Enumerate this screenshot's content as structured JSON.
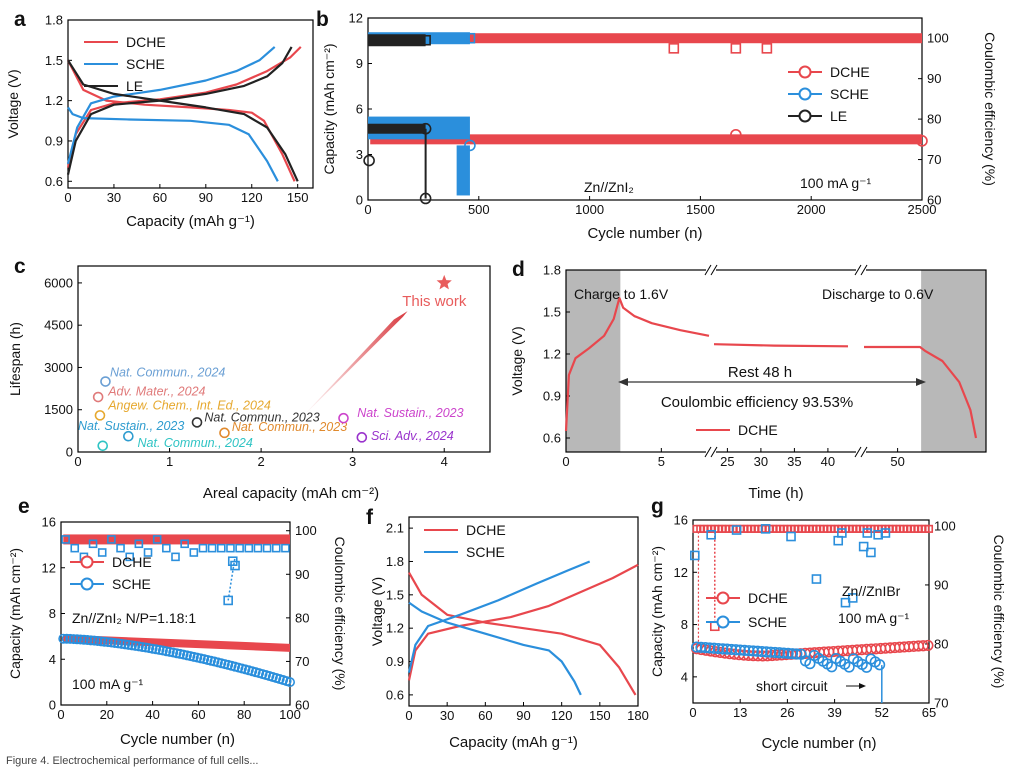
{
  "colors": {
    "dche": "#e8474d",
    "sche": "#2b8fdc",
    "le": "#222222",
    "star": "#e85c5c",
    "shade": "#b8b8b8"
  },
  "caption": "Figure 4. Electrochemical performance of full cells...",
  "panels": {
    "a": {
      "letter": "a",
      "xlabel": "Capacity (mAh g⁻¹)",
      "ylabel": "Voltage (V)",
      "legend": [
        "DCHE",
        "SCHE",
        "LE"
      ]
    },
    "b": {
      "letter": "b",
      "xlabel": "Cycle number (n)",
      "ylabel": "Capacity (mAh cm⁻²)",
      "ylabel2": "Coulombic efficiency (%)",
      "legend": [
        "DCHE",
        "SCHE",
        "LE"
      ],
      "annotation_cell": "Zn//ZnI₂",
      "annotation_rate": "100 mA g⁻¹"
    },
    "c": {
      "letter": "c",
      "xlabel": "Areal capacity (mAh cm⁻²)",
      "ylabel": "Lifespan (h)",
      "this_work": "This work"
    },
    "d": {
      "letter": "d",
      "xlabel": "Time (h)",
      "ylabel": "Voltage (V)",
      "charge_label": "Charge to 1.6V",
      "discharge_label": "Discharge to 0.6V",
      "rest_label": "Rest 48 h",
      "ce_label": "Coulombic efficiency 93.53%",
      "legend": [
        "DCHE"
      ]
    },
    "e": {
      "letter": "e",
      "xlabel": "Cycle number (n)",
      "ylabel": "Capacity (mAh cm⁻²)",
      "ylabel2": "Coulombic efficiency (%)",
      "legend": [
        "DCHE",
        "SCHE"
      ],
      "annotation_cell": "Zn//ZnI₂  N/P=1.18:1",
      "annotation_rate": "100 mA g⁻¹"
    },
    "f": {
      "letter": "f",
      "xlabel": "Capacity (mAh g⁻¹)",
      "ylabel": "Voltage (V)",
      "legend": [
        "DCHE",
        "SCHE"
      ]
    },
    "g": {
      "letter": "g",
      "xlabel": "Cycle number (n)",
      "ylabel": "Capacity (mAh cm⁻²)",
      "ylabel2": "Coulombic efficiency (%)",
      "legend": [
        "DCHE",
        "SCHE"
      ],
      "annotation_cell": "Zn//ZnIBr",
      "annotation_rate": "100 mA g⁻¹",
      "short_circuit": "short circuit"
    }
  },
  "chart_data": [
    {
      "id": "a",
      "type": "line",
      "title": "",
      "xlabel": "Capacity (mAh g⁻¹)",
      "ylabel": "Voltage (V)",
      "xlim": [
        0,
        160
      ],
      "ylim": [
        0.55,
        1.8
      ],
      "xticks": [
        0,
        30,
        60,
        90,
        120,
        150
      ],
      "yticks": [
        0.6,
        0.9,
        1.2,
        1.5,
        1.8
      ],
      "series": [
        {
          "name": "DCHE",
          "color": "dche",
          "segments": [
            [
              [
                0,
                0.7
              ],
              [
                5,
                0.95
              ],
              [
                15,
                1.13
              ],
              [
                30,
                1.18
              ],
              [
                60,
                1.21
              ],
              [
                90,
                1.26
              ],
              [
                110,
                1.32
              ],
              [
                130,
                1.42
              ],
              [
                145,
                1.52
              ],
              [
                152,
                1.6
              ]
            ],
            [
              [
                0,
                1.5
              ],
              [
                10,
                1.28
              ],
              [
                25,
                1.2
              ],
              [
                50,
                1.17
              ],
              [
                80,
                1.15
              ],
              [
                105,
                1.13
              ],
              [
                120,
                1.11
              ],
              [
                128,
                1.05
              ],
              [
                140,
                0.8
              ],
              [
                148,
                0.6
              ]
            ]
          ]
        },
        {
          "name": "SCHE",
          "color": "sche",
          "segments": [
            [
              [
                0,
                0.73
              ],
              [
                6,
                1.0
              ],
              [
                15,
                1.18
              ],
              [
                30,
                1.23
              ],
              [
                60,
                1.28
              ],
              [
                90,
                1.35
              ],
              [
                110,
                1.42
              ],
              [
                125,
                1.5
              ],
              [
                135,
                1.6
              ]
            ],
            [
              [
                0,
                1.15
              ],
              [
                3,
                1.1
              ],
              [
                10,
                1.07
              ],
              [
                40,
                1.06
              ],
              [
                80,
                1.05
              ],
              [
                105,
                1.02
              ],
              [
                118,
                0.95
              ],
              [
                130,
                0.75
              ],
              [
                137,
                0.6
              ]
            ]
          ]
        },
        {
          "name": "LE",
          "color": "le",
          "segments": [
            [
              [
                0,
                0.65
              ],
              [
                5,
                0.9
              ],
              [
                15,
                1.1
              ],
              [
                30,
                1.17
              ],
              [
                60,
                1.2
              ],
              [
                90,
                1.25
              ],
              [
                115,
                1.31
              ],
              [
                130,
                1.38
              ],
              [
                140,
                1.48
              ],
              [
                146,
                1.6
              ]
            ],
            [
              [
                0,
                1.5
              ],
              [
                10,
                1.32
              ],
              [
                30,
                1.25
              ],
              [
                60,
                1.2
              ],
              [
                90,
                1.15
              ],
              [
                115,
                1.1
              ],
              [
                130,
                1.0
              ],
              [
                142,
                0.8
              ],
              [
                150,
                0.6
              ]
            ]
          ]
        }
      ]
    },
    {
      "id": "b",
      "type": "scatter",
      "title": "",
      "xlabel": "Cycle number (n)",
      "ylabel": "Capacity (mAh cm⁻²)",
      "ylabel2": "Coulombic efficiency (%)",
      "xlim": [
        0,
        2500
      ],
      "ylim": [
        0,
        12
      ],
      "y2lim": [
        60,
        105
      ],
      "xticks": [
        0,
        500,
        1000,
        1500,
        2000,
        2500
      ],
      "yticks": [
        0,
        3,
        6,
        9,
        12
      ],
      "y2ticks": [
        60,
        70,
        80,
        90,
        100
      ],
      "series": [
        {
          "name": "DCHE",
          "color": "dche",
          "capacity_range": [
            10,
            2500,
            4.0
          ],
          "ce_range": [
            10,
            2500,
            100
          ],
          "ce_dips": [
            [
              1380,
              97.5
            ],
            [
              1660,
              97.5
            ],
            [
              1800,
              97.5
            ]
          ],
          "cap_points": [
            [
              1660,
              4.3
            ],
            [
              2500,
              3.9
            ]
          ]
        },
        {
          "name": "SCHE",
          "color": "sche",
          "capacity_range": [
            0,
            460,
            4.8
          ],
          "ce_range": [
            0,
            460,
            100
          ],
          "fail_at": 460,
          "fail_min": 0.3
        },
        {
          "name": "LE",
          "color": "le",
          "capacity_range": [
            0,
            260,
            4.7
          ],
          "ce_range": [
            0,
            260,
            99.5
          ],
          "fail_at": 260,
          "fail_min": 0.1,
          "early_points": [
            [
              5,
              2.6
            ]
          ]
        }
      ]
    },
    {
      "id": "c",
      "type": "scatter",
      "title": "",
      "xlabel": "Areal capacity (mAh cm⁻²)",
      "ylabel": "Lifespan (h)",
      "xlim": [
        0,
        4.5
      ],
      "ylim": [
        0,
        6600
      ],
      "xticks": [
        0,
        1,
        2,
        3,
        4
      ],
      "yticks": [
        0,
        1500,
        3000,
        4500,
        6000
      ],
      "points": [
        {
          "x": 0.3,
          "y": 2500,
          "label": "Nat. Commun., 2024",
          "color": "#6a9fd4",
          "lx": 0.35,
          "ly": 2680
        },
        {
          "x": 0.22,
          "y": 1950,
          "label": "Adv. Mater., 2024",
          "color": "#e07a7a",
          "lx": 0.33,
          "ly": 2000
        },
        {
          "x": 0.24,
          "y": 1300,
          "label": "Angew. Chem., Int. Ed., 2024",
          "color": "#e6a82e",
          "lx": 0.33,
          "ly": 1500
        },
        {
          "x": 0.55,
          "y": 560,
          "label": "Nat. Sustain., 2023",
          "color": "#2e9ccf",
          "lx": 0.0,
          "ly": 780
        },
        {
          "x": 0.27,
          "y": 220,
          "label": "Nat. Commun., 2024",
          "color": "#2fc4c4",
          "lx": 0.65,
          "ly": 180
        },
        {
          "x": 1.3,
          "y": 1050,
          "label": "Nat. Commun., 2023",
          "color": "#333333",
          "lx": 1.38,
          "ly": 1080
        },
        {
          "x": 1.6,
          "y": 680,
          "label": "Nat. Commun., 2023",
          "color": "#e08a2e",
          "lx": 1.68,
          "ly": 740
        },
        {
          "x": 2.9,
          "y": 1200,
          "label": "Nat. Sustain., 2023",
          "color": "#cc44cc",
          "lx": 3.05,
          "ly": 1250
        },
        {
          "x": 3.1,
          "y": 520,
          "label": "Sci. Adv., 2024",
          "color": "#9932cc",
          "lx": 3.2,
          "ly": 420
        }
      ],
      "this_work": {
        "x": 4.0,
        "y": 6000
      }
    },
    {
      "id": "d",
      "type": "line",
      "title": "",
      "xlabel": "Time (h)",
      "ylabel": "Voltage (V)",
      "ylim": [
        0.5,
        1.8
      ],
      "yticks": [
        0.6,
        0.9,
        1.2,
        1.5,
        1.8
      ],
      "xtick_labels": [
        "0",
        "5",
        "25",
        "30",
        "35",
        "40",
        "50"
      ],
      "segments": [
        [
          [
            0,
            0.65
          ],
          [
            0.15,
            1.05
          ],
          [
            0.5,
            1.17
          ],
          [
            1.2,
            1.24
          ],
          [
            2.0,
            1.33
          ],
          [
            2.5,
            1.45
          ],
          [
            2.8,
            1.6
          ],
          [
            3.0,
            1.53
          ],
          [
            3.6,
            1.47
          ],
          [
            4.5,
            1.42
          ],
          [
            6.0,
            1.37
          ],
          [
            7.5,
            1.33
          ]
        ],
        [
          [
            23,
            1.27
          ],
          [
            32,
            1.26
          ],
          [
            43,
            1.255
          ]
        ],
        [
          [
            47,
            1.25
          ],
          [
            52,
            1.25
          ],
          [
            52.5,
            1.22
          ],
          [
            54,
            1.15
          ],
          [
            55.5,
            1.0
          ],
          [
            56.5,
            0.8
          ],
          [
            57,
            0.6
          ]
        ]
      ]
    },
    {
      "id": "e",
      "type": "scatter",
      "title": "",
      "xlabel": "Cycle number (n)",
      "ylabel": "Capacity (mAh cm⁻²)",
      "ylabel2": "Coulombic efficiency (%)",
      "xlim": [
        0,
        100
      ],
      "ylim": [
        0,
        16
      ],
      "y2lim": [
        60,
        102
      ],
      "xticks": [
        0,
        20,
        40,
        60,
        80,
        100
      ],
      "yticks": [
        0,
        4,
        8,
        12,
        16
      ],
      "y2ticks": [
        60,
        70,
        80,
        90,
        100
      ],
      "series": [
        {
          "name": "DCHE",
          "color": "dche",
          "cap_start": 5.8,
          "cap_end": 5.0,
          "ce": 98
        },
        {
          "name": "SCHE",
          "color": "sche",
          "cap_start": 5.8,
          "cap_end": 2.0,
          "ce": 96,
          "ce_dips": [
            [
              73,
              84
            ],
            [
              75,
              93
            ],
            [
              76,
              92
            ]
          ]
        }
      ]
    },
    {
      "id": "f",
      "type": "line",
      "title": "",
      "xlabel": "Capacity (mAh g⁻¹)",
      "ylabel": "Voltage (V)",
      "xlim": [
        0,
        180
      ],
      "ylim": [
        0.5,
        2.2
      ],
      "xticks": [
        0,
        30,
        60,
        90,
        120,
        150,
        180
      ],
      "yticks": [
        0.6,
        0.9,
        1.2,
        1.5,
        1.8,
        2.1
      ],
      "series": [
        {
          "name": "DCHE",
          "color": "dche",
          "segments": [
            [
              [
                0,
                0.73
              ],
              [
                5,
                1.0
              ],
              [
                15,
                1.15
              ],
              [
                40,
                1.22
              ],
              [
                80,
                1.3
              ],
              [
                110,
                1.4
              ],
              [
                140,
                1.55
              ],
              [
                160,
                1.65
              ],
              [
                180,
                1.77
              ]
            ],
            [
              [
                0,
                1.7
              ],
              [
                10,
                1.5
              ],
              [
                30,
                1.32
              ],
              [
                60,
                1.25
              ],
              [
                90,
                1.2
              ],
              [
                120,
                1.15
              ],
              [
                150,
                1.05
              ],
              [
                165,
                0.85
              ],
              [
                178,
                0.6
              ]
            ]
          ]
        },
        {
          "name": "SCHE",
          "color": "sche",
          "segments": [
            [
              [
                0,
                0.8
              ],
              [
                5,
                1.05
              ],
              [
                15,
                1.22
              ],
              [
                40,
                1.32
              ],
              [
                70,
                1.45
              ],
              [
                100,
                1.6
              ],
              [
                125,
                1.72
              ],
              [
                142,
                1.8
              ]
            ],
            [
              [
                0,
                1.43
              ],
              [
                10,
                1.35
              ],
              [
                30,
                1.25
              ],
              [
                60,
                1.15
              ],
              [
                90,
                1.05
              ],
              [
                110,
                1.0
              ],
              [
                120,
                0.9
              ],
              [
                130,
                0.72
              ],
              [
                135,
                0.6
              ]
            ]
          ]
        }
      ]
    },
    {
      "id": "g",
      "type": "scatter",
      "title": "",
      "xlabel": "Cycle number (n)",
      "ylabel": "Capacity (mAh cm⁻²)",
      "ylabel2": "Coulombic efficiency (%)",
      "xlim": [
        0,
        65
      ],
      "ylim": [
        2,
        16
      ],
      "y2lim": [
        70,
        101
      ],
      "xticks": [
        0,
        13,
        26,
        39,
        52,
        65
      ],
      "yticks": [
        4,
        8,
        12,
        16
      ],
      "y2ticks": [
        70,
        80,
        90,
        100
      ],
      "series": [
        {
          "name": "DCHE",
          "color": "dche",
          "cap_start": 6.2,
          "cap_end": 6.4,
          "ce": 99.5
        },
        {
          "name": "SCHE",
          "color": "sche",
          "cap_start": 6.3,
          "cap_end": 4.9,
          "ce": 99.5,
          "short_at": 52
        }
      ]
    }
  ]
}
